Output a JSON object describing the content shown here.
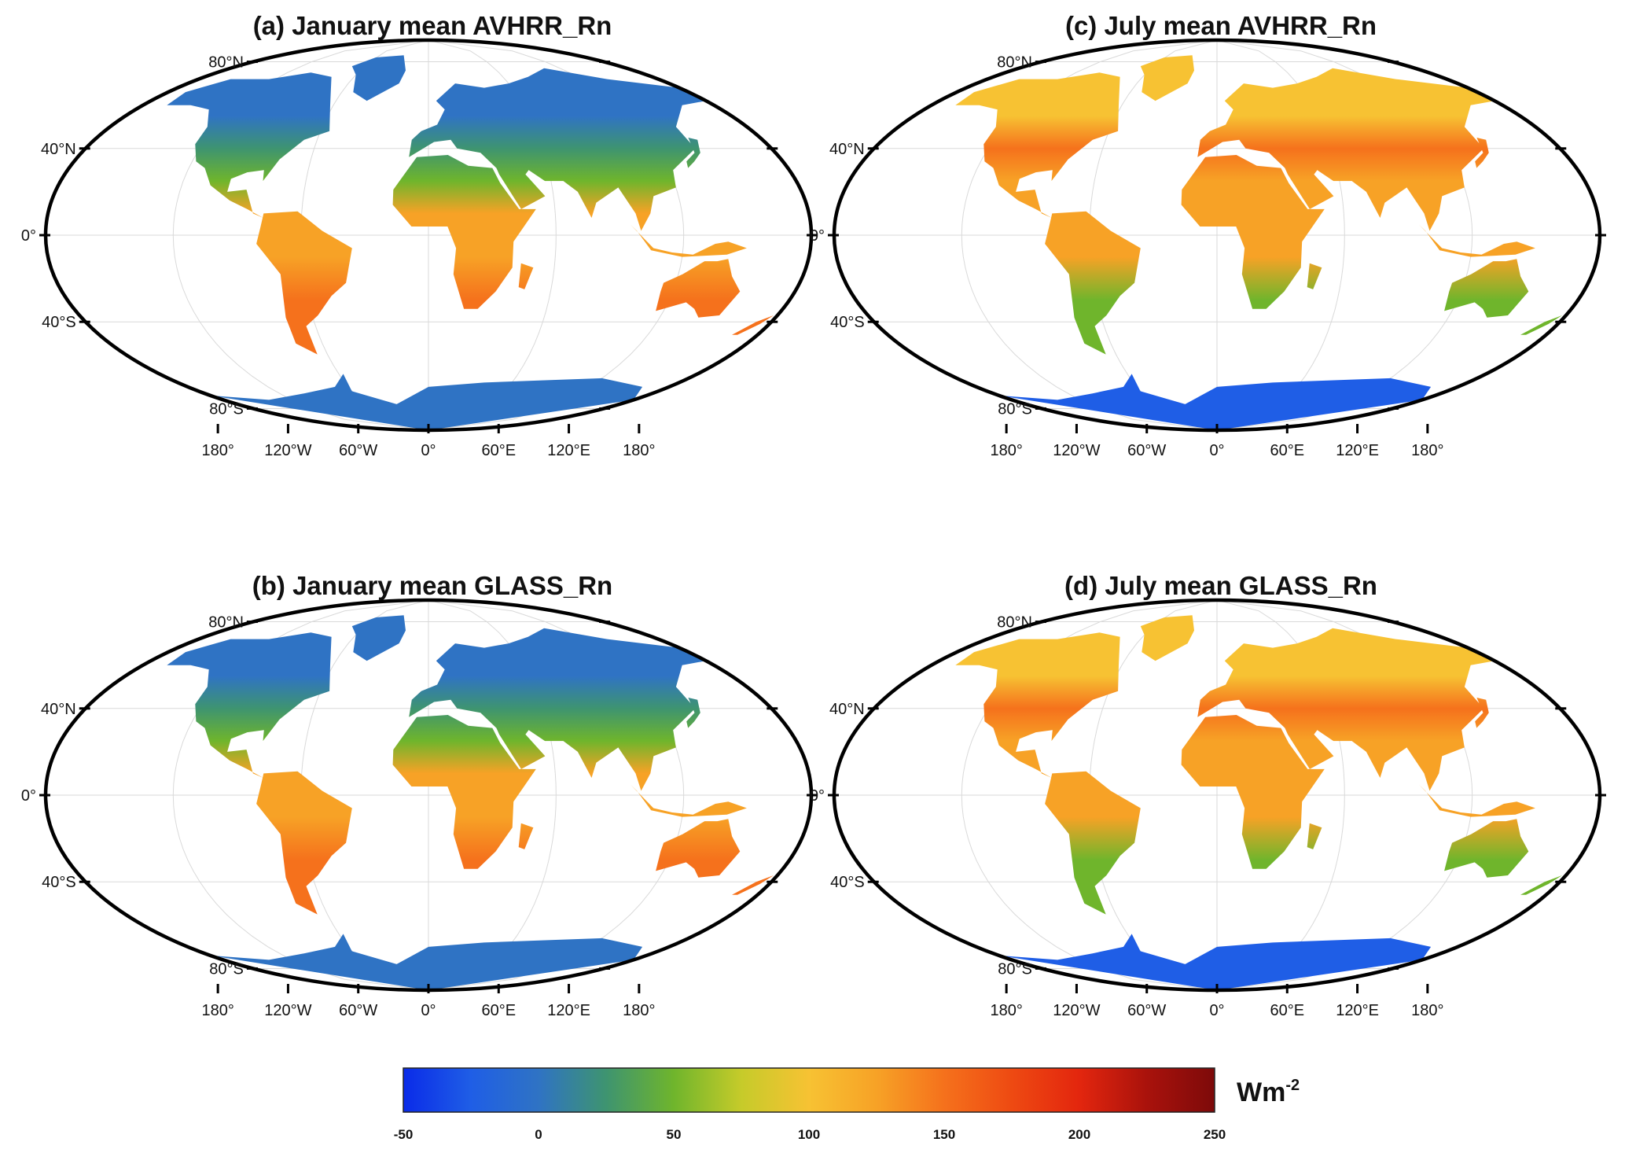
{
  "panels": [
    {
      "id": "a",
      "title": "(a) January mean AVHRR_Rn",
      "season": "january",
      "lat_labels": [
        "80°N",
        "40°N",
        "0°",
        "40°S",
        "80°S"
      ],
      "lon_labels": [
        "180°",
        "120°W",
        "60°W",
        "0°",
        "60°E",
        "120°E",
        "180°"
      ]
    },
    {
      "id": "c",
      "title": "(c) July mean AVHRR_Rn",
      "season": "july",
      "lat_labels": [
        "80°N",
        "40°N",
        "0°",
        "40°S",
        "80°S"
      ],
      "lon_labels": [
        "180°",
        "120°W",
        "60°W",
        "0°",
        "60°E",
        "120°E",
        "180°"
      ]
    },
    {
      "id": "b",
      "title": "(b) January mean GLASS_Rn",
      "season": "january",
      "lat_labels": [
        "80°N",
        "40°N",
        "0°",
        "40°S",
        "80°S"
      ],
      "lon_labels": [
        "180°",
        "120°W",
        "60°W",
        "0°",
        "60°E",
        "120°E",
        "180°"
      ]
    },
    {
      "id": "d",
      "title": "(d) July mean GLASS_Rn",
      "season": "july",
      "lat_labels": [
        "80°N",
        "40°N",
        "0°",
        "40°S",
        "80°S"
      ],
      "lon_labels": [
        "180°",
        "120°W",
        "60°W",
        "0°",
        "60°E",
        "120°E",
        "180°"
      ]
    }
  ],
  "colorbar": {
    "min": -50,
    "max": 250,
    "tick_labels": [
      "-50",
      "0",
      "50",
      "100",
      "150",
      "200",
      "250"
    ],
    "unit_base": "Wm",
    "unit_exponent": "-2",
    "stops": [
      {
        "value": -50,
        "color": "#0a2be8"
      },
      {
        "value": -25,
        "color": "#1f5ee6"
      },
      {
        "value": 0,
        "color": "#2f73c4"
      },
      {
        "value": 25,
        "color": "#3e9470"
      },
      {
        "value": 50,
        "color": "#6fb52c"
      },
      {
        "value": 75,
        "color": "#c6cb2a"
      },
      {
        "value": 100,
        "color": "#f7c233"
      },
      {
        "value": 125,
        "color": "#f7a226"
      },
      {
        "value": 150,
        "color": "#f5711c"
      },
      {
        "value": 175,
        "color": "#ee4a12"
      },
      {
        "value": 200,
        "color": "#e3260e"
      },
      {
        "value": 225,
        "color": "#a9120c"
      },
      {
        "value": 250,
        "color": "#7d0a0a"
      }
    ]
  },
  "season_styles": {
    "january": {
      "north_high": "#2f73c4",
      "north_mid": "#3e9470",
      "subtropic_n": "#6fb52c",
      "tropic": "#f7a226",
      "south_mid": "#f5711c",
      "antarctica": "#2f73c4"
    },
    "july": {
      "north_high": "#f7c233",
      "north_mid": "#f5711c",
      "subtropic_n": "#f7a226",
      "tropic": "#f7a226",
      "south_mid": "#6fb52c",
      "antarctica": "#1f5ee6"
    }
  }
}
